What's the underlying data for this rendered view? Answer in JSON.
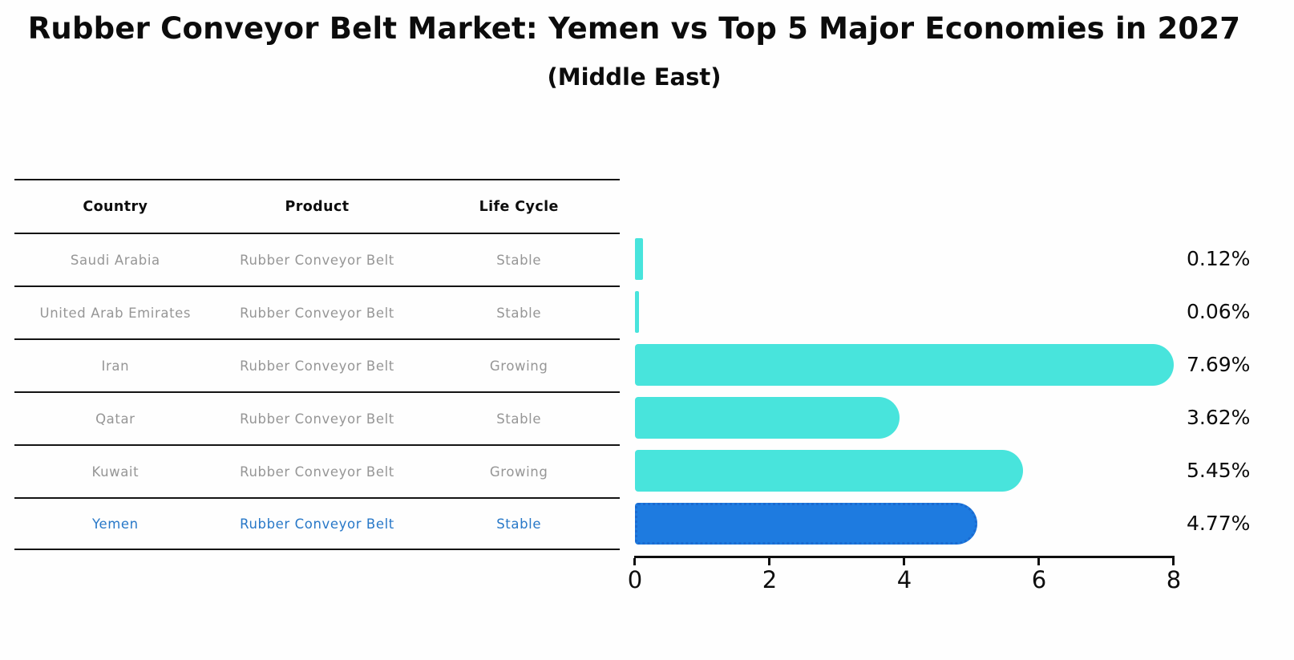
{
  "header": {
    "title": "Rubber Conveyor Belt Market: Yemen vs Top 5 Major Economies in 2027",
    "subtitle": "(Middle East)"
  },
  "table": {
    "headers": [
      "Country",
      "Product",
      "Life Cycle"
    ],
    "rows": [
      {
        "country": "Saudi Arabia",
        "product": "Rubber Conveyor Belt",
        "life_cycle": "Stable",
        "highlight": false
      },
      {
        "country": "United Arab Emirates",
        "product": "Rubber Conveyor Belt",
        "life_cycle": "Stable",
        "highlight": false
      },
      {
        "country": "Iran",
        "product": "Rubber Conveyor Belt",
        "life_cycle": "Growing",
        "highlight": false
      },
      {
        "country": "Qatar",
        "product": "Rubber Conveyor Belt",
        "life_cycle": "Stable",
        "highlight": false
      },
      {
        "country": "Kuwait",
        "product": "Rubber Conveyor Belt",
        "life_cycle": "Growing",
        "highlight": false
      },
      {
        "country": "Yemen",
        "product": "Rubber Conveyor Belt",
        "life_cycle": "Stable",
        "highlight": true
      }
    ]
  },
  "chart_data": {
    "type": "bar",
    "orientation": "horizontal",
    "title": "Rubber Conveyor Belt Market: Yemen vs Top 5 Major Economies in 2027",
    "subtitle": "(Middle East)",
    "categories": [
      "Saudi Arabia",
      "United Arab Emirates",
      "Iran",
      "Qatar",
      "Kuwait",
      "Yemen"
    ],
    "values": [
      0.12,
      0.06,
      7.69,
      3.62,
      5.45,
      4.77
    ],
    "value_labels": [
      "0.12%",
      "0.06%",
      "7.69%",
      "3.62%",
      "5.45%",
      "4.77%"
    ],
    "xlim": [
      0,
      8
    ],
    "x_ticks": [
      "0",
      "2",
      "4",
      "6",
      "8"
    ],
    "grid": false,
    "legend": "none",
    "highlight_category": "Yemen",
    "colors": {
      "bar": "#48E4DC",
      "highlight_bar": "#1E7BE0",
      "highlight_border": "#1A6AD0",
      "highlight_text": "#2878C8",
      "table_text": "#969696",
      "axis": "#0F0F0F"
    }
  }
}
